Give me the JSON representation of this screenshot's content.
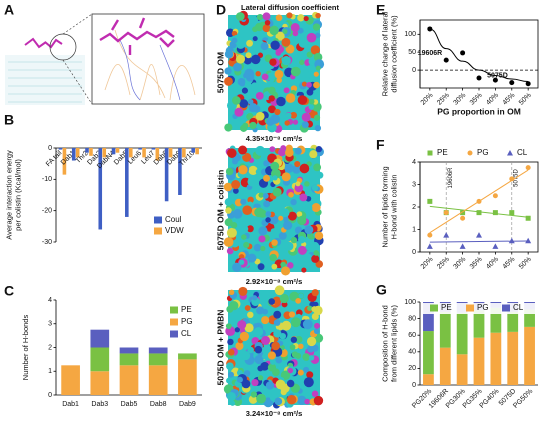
{
  "chart_data": [
    {
      "type": "image",
      "panel": "A"
    },
    {
      "type": "bar",
      "panel": "B",
      "ylabel": [
        "Average interaction energy",
        "per colistin (Kcal/mol)"
      ],
      "categories": [
        "FA tail",
        "Dab1",
        "Thr2",
        "Dab3",
        "DabN4",
        "Dab5",
        "Leu6",
        "Leu7",
        "Dab8",
        "Dab9",
        "Thr10"
      ],
      "series": [
        {
          "name": "Coul",
          "color": "#3f5fc4",
          "values": [
            -0.5,
            -4,
            -1.5,
            -26,
            -2,
            -22,
            -0.5,
            -0.5,
            -17,
            -15,
            -1.5
          ]
        },
        {
          "name": "VDW",
          "color": "#f5a742",
          "values": [
            -8.5,
            -3,
            -2.5,
            -3,
            -1.5,
            -3,
            -3,
            -4,
            -3,
            -3,
            -2
          ]
        }
      ],
      "ylim": [
        -30,
        0
      ],
      "yticks": [
        0,
        -10,
        -20,
        -30
      ]
    },
    {
      "type": "stacked-bar",
      "panel": "C",
      "ylabel": [
        "Number of H-bonds"
      ],
      "categories": [
        "Dab1",
        "Dab3",
        "Dab5",
        "Dab8",
        "Dab9"
      ],
      "series": [
        {
          "name": "PE",
          "color": "#7ac143",
          "values": [
            0,
            1.0,
            0.5,
            0.5,
            0.25
          ]
        },
        {
          "name": "PG",
          "color": "#f5a742",
          "values": [
            1.25,
            1.0,
            1.25,
            1.25,
            1.5
          ]
        },
        {
          "name": "CL",
          "color": "#5a5fbf",
          "values": [
            0,
            0.75,
            0.25,
            0.25,
            0
          ]
        }
      ],
      "ylim": [
        0,
        4
      ],
      "yticks": [
        0,
        1,
        2,
        3,
        4
      ]
    },
    {
      "type": "snapshots",
      "panel": "D",
      "title": "Lateral diffusion coefficient",
      "snapshots": [
        {
          "label": "5075D OM",
          "caption": "4.35×10⁻⁸ cm²/s"
        },
        {
          "label": "5075D OM + colistin",
          "caption": "2.92×10⁻⁸ cm²/s"
        },
        {
          "label": "5075D OM + PMBN",
          "caption": "3.24×10⁻⁸ cm²/s"
        }
      ]
    },
    {
      "type": "scatter",
      "panel": "E",
      "ylabel": [
        "Relative change of lateral",
        "diffusion coefficient (%)"
      ],
      "xlabel": "PG proportion in OM",
      "x": [
        20,
        25,
        30,
        35,
        40,
        45,
        50
      ],
      "series": [
        {
          "color": "#000000",
          "marker": "circle",
          "values": [
            115,
            28,
            48,
            -22,
            -28,
            -35,
            -38
          ]
        }
      ],
      "curve": [
        115,
        60,
        25,
        0,
        -15,
        -25,
        -32
      ],
      "hline": 0,
      "annotations": [
        {
          "text": "19606R",
          "x": 25
        },
        {
          "text": "5075D",
          "x": 45
        }
      ],
      "xlim": [
        17,
        53
      ],
      "xticks": [
        {
          "value": 20,
          "label": "20%"
        },
        {
          "value": 25,
          "label": "25%"
        },
        {
          "value": 30,
          "label": "30%"
        },
        {
          "value": 35,
          "label": "35%"
        },
        {
          "value": 40,
          "label": "40%"
        },
        {
          "value": 45,
          "label": "45%"
        },
        {
          "value": 50,
          "label": "50%"
        }
      ],
      "ylim": [
        -50,
        140
      ],
      "yticks": [
        0,
        50,
        100
      ]
    },
    {
      "type": "scatter",
      "panel": "F",
      "trend": true,
      "ylabel": [
        "Number of lipids forming",
        "H-bond with colistin"
      ],
      "x": [
        20,
        25,
        30,
        35,
        40,
        45,
        50
      ],
      "series": [
        {
          "name": "PE",
          "color": "#7ac143",
          "marker": "square",
          "values": [
            2.25,
            1.75,
            1.75,
            1.75,
            1.75,
            1.75,
            1.5
          ]
        },
        {
          "name": "PG",
          "color": "#f5a742",
          "marker": "circle",
          "values": [
            0.75,
            1.75,
            1.5,
            2.25,
            2.5,
            3.25,
            3.75
          ]
        },
        {
          "name": "CL",
          "color": "#5a5fbf",
          "marker": "triangle",
          "values": [
            0.25,
            0.75,
            0.25,
            0.75,
            0.25,
            0.5,
            0.5
          ]
        }
      ],
      "vlines": [
        {
          "text": "19606R",
          "x": 25
        },
        {
          "text": "5075D",
          "x": 45
        }
      ],
      "xlim": [
        17,
        53
      ],
      "xticks": [
        {
          "value": 20,
          "label": "20%"
        },
        {
          "value": 25,
          "label": "25%"
        },
        {
          "value": 30,
          "label": "30%"
        },
        {
          "value": 35,
          "label": "35%"
        },
        {
          "value": 40,
          "label": "40%"
        },
        {
          "value": 45,
          "label": "45%"
        },
        {
          "value": 50,
          "label": "50%"
        }
      ],
      "ylim": [
        0,
        4
      ],
      "yticks": [
        0,
        1,
        2,
        3,
        4
      ]
    },
    {
      "type": "stacked-bar",
      "panel": "G",
      "ylabel": [
        "Composition of H-bond",
        "from different lipids (%)"
      ],
      "categories": [
        "PG20%",
        "19606R",
        "PG30%",
        "PG35%",
        "PG40%",
        "5075D",
        "PG50%"
      ],
      "series": [
        {
          "name": "PE",
          "color": "#7ac143",
          "values": [
            52,
            43,
            50,
            33,
            30,
            24,
            21
          ]
        },
        {
          "name": "PG",
          "color": "#f5a742",
          "values": [
            13,
            45,
            37,
            57,
            63,
            64,
            70
          ]
        },
        {
          "name": "CL",
          "color": "#5a5fbf",
          "values": [
            35,
            12,
            13,
            10,
            7,
            12,
            9
          ]
        }
      ],
      "ylim": [
        0,
        100
      ],
      "yticks": [
        0,
        20,
        40,
        60,
        80,
        100
      ]
    }
  ]
}
